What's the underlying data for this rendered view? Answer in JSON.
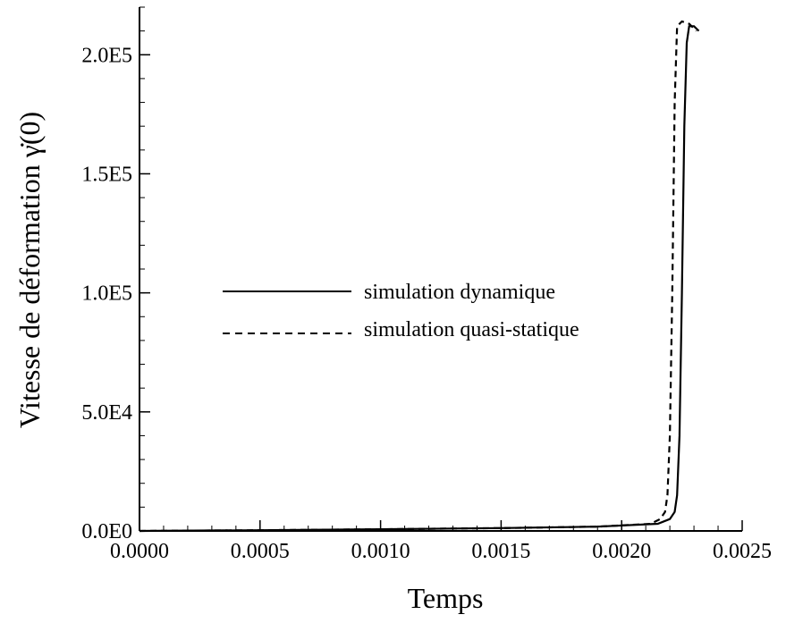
{
  "chart_data": {
    "type": "line",
    "xlabel": "Temps",
    "ylabel": "Vitesse de déformation γ̇(0)",
    "xlim": [
      0,
      0.0025
    ],
    "ylim": [
      0,
      220000
    ],
    "x_ticks": [
      0,
      0.0005,
      0.001,
      0.0015,
      0.002,
      0.0025
    ],
    "x_tick_labels": [
      "0.0000",
      "0.0005",
      "0.0010",
      "0.0015",
      "0.0020",
      "0.0025"
    ],
    "y_ticks": [
      0,
      50000,
      100000,
      150000,
      200000
    ],
    "y_tick_labels": [
      "0.0E0",
      "5.0E4",
      "1.0E5",
      "1.5E5",
      "2.0E5"
    ],
    "legend_position": "center-left",
    "series": [
      {
        "name": "simulation dynamique",
        "style": "solid",
        "color": "#000000",
        "points": [
          [
            0.0,
            0
          ],
          [
            0.0005,
            300
          ],
          [
            0.001,
            700
          ],
          [
            0.0015,
            1200
          ],
          [
            0.0019,
            1800
          ],
          [
            0.00215,
            3000
          ],
          [
            0.0022,
            5000
          ],
          [
            0.00222,
            8000
          ],
          [
            0.00223,
            15000
          ],
          [
            0.00224,
            40000
          ],
          [
            0.00225,
            100000
          ],
          [
            0.00226,
            170000
          ],
          [
            0.00227,
            205000
          ],
          [
            0.00228,
            212000
          ],
          [
            0.0023,
            212000
          ],
          [
            0.00232,
            210000
          ]
        ]
      },
      {
        "name": "simulation quasi-statique",
        "style": "dashed",
        "color": "#000000",
        "points": [
          [
            0.0,
            0
          ],
          [
            0.0005,
            300
          ],
          [
            0.001,
            700
          ],
          [
            0.0015,
            1200
          ],
          [
            0.0019,
            1800
          ],
          [
            0.00212,
            3000
          ],
          [
            0.00216,
            5000
          ],
          [
            0.00218,
            8000
          ],
          [
            0.00219,
            15000
          ],
          [
            0.0022,
            40000
          ],
          [
            0.00221,
            100000
          ],
          [
            0.00222,
            180000
          ],
          [
            0.00223,
            212000
          ],
          [
            0.00225,
            214000
          ],
          [
            0.00228,
            213000
          ],
          [
            0.00231,
            210000
          ]
        ]
      }
    ]
  }
}
